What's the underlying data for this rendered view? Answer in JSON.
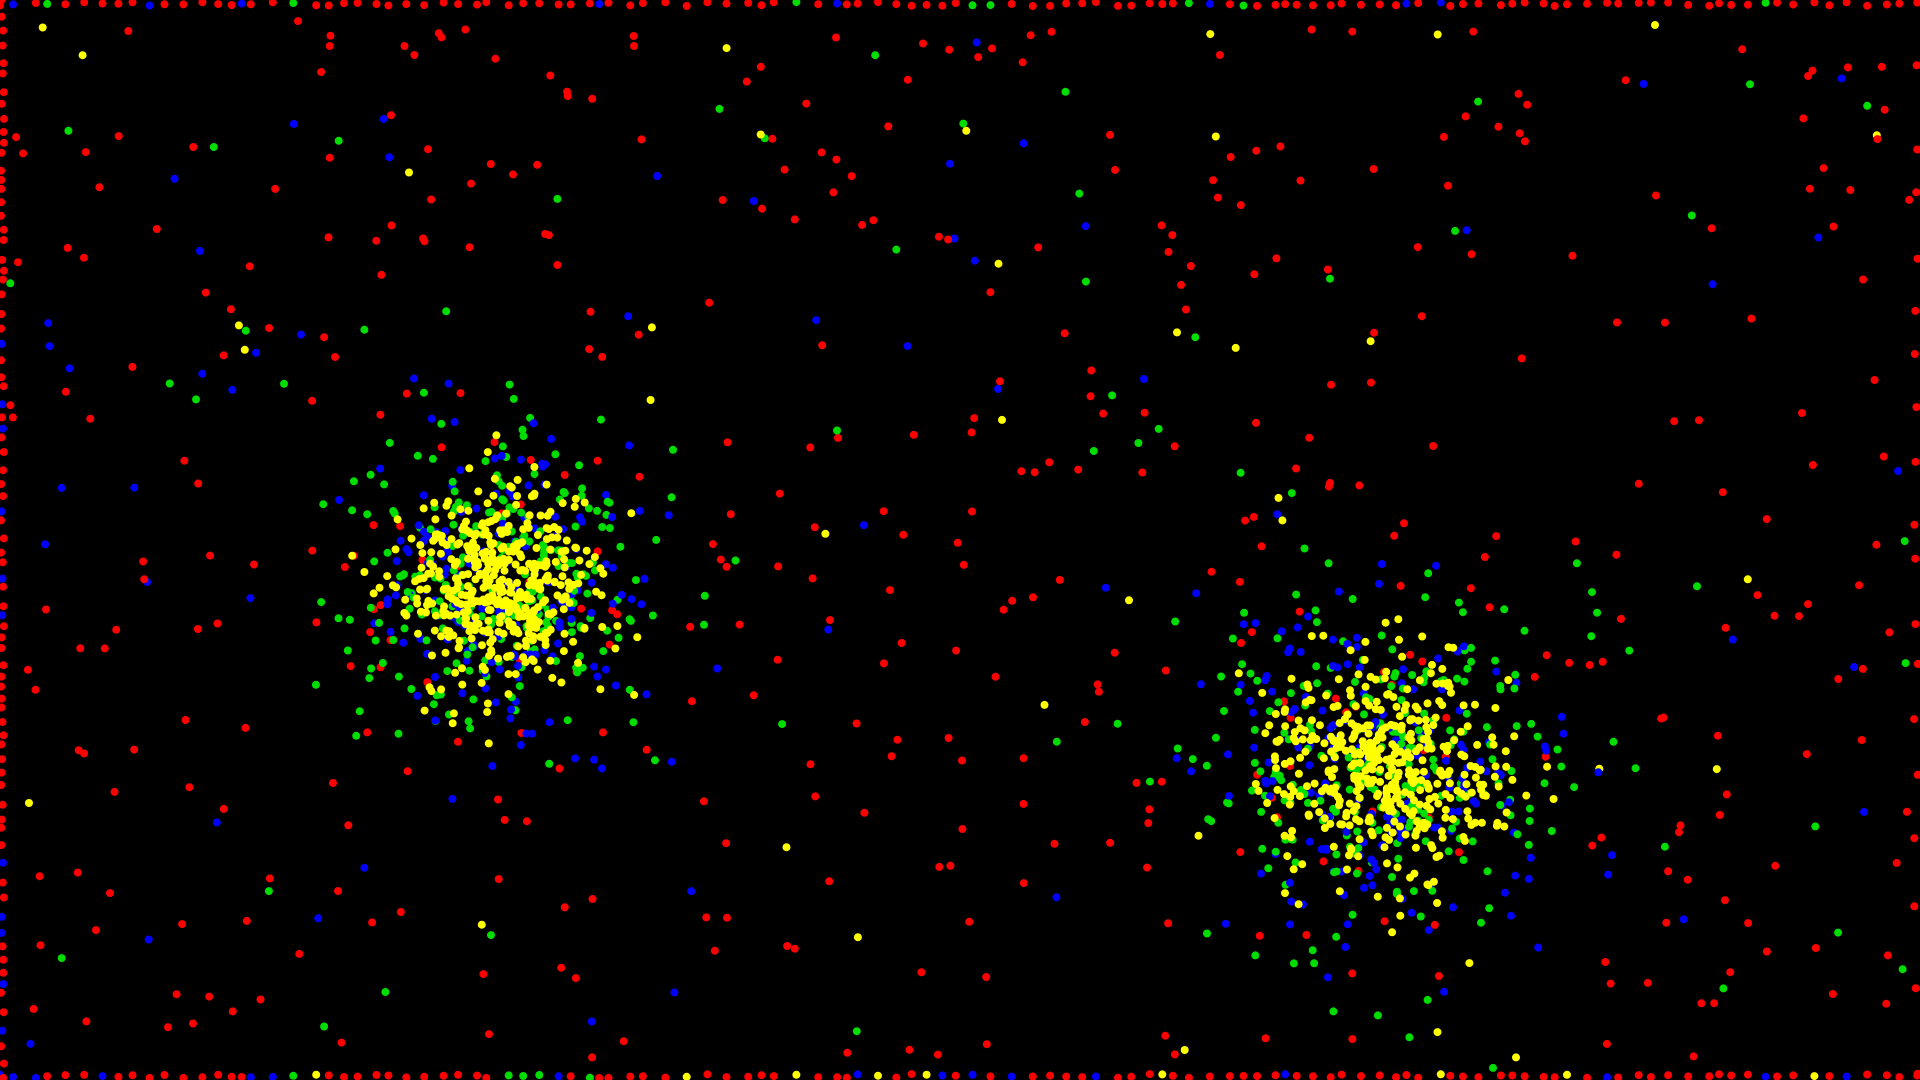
{
  "scene": {
    "background_color": "#000000",
    "palette": {
      "red": "#ff0000",
      "blue": "#0000ff",
      "green": "#00dd00",
      "yellow": "#ffff00"
    }
  }
}
